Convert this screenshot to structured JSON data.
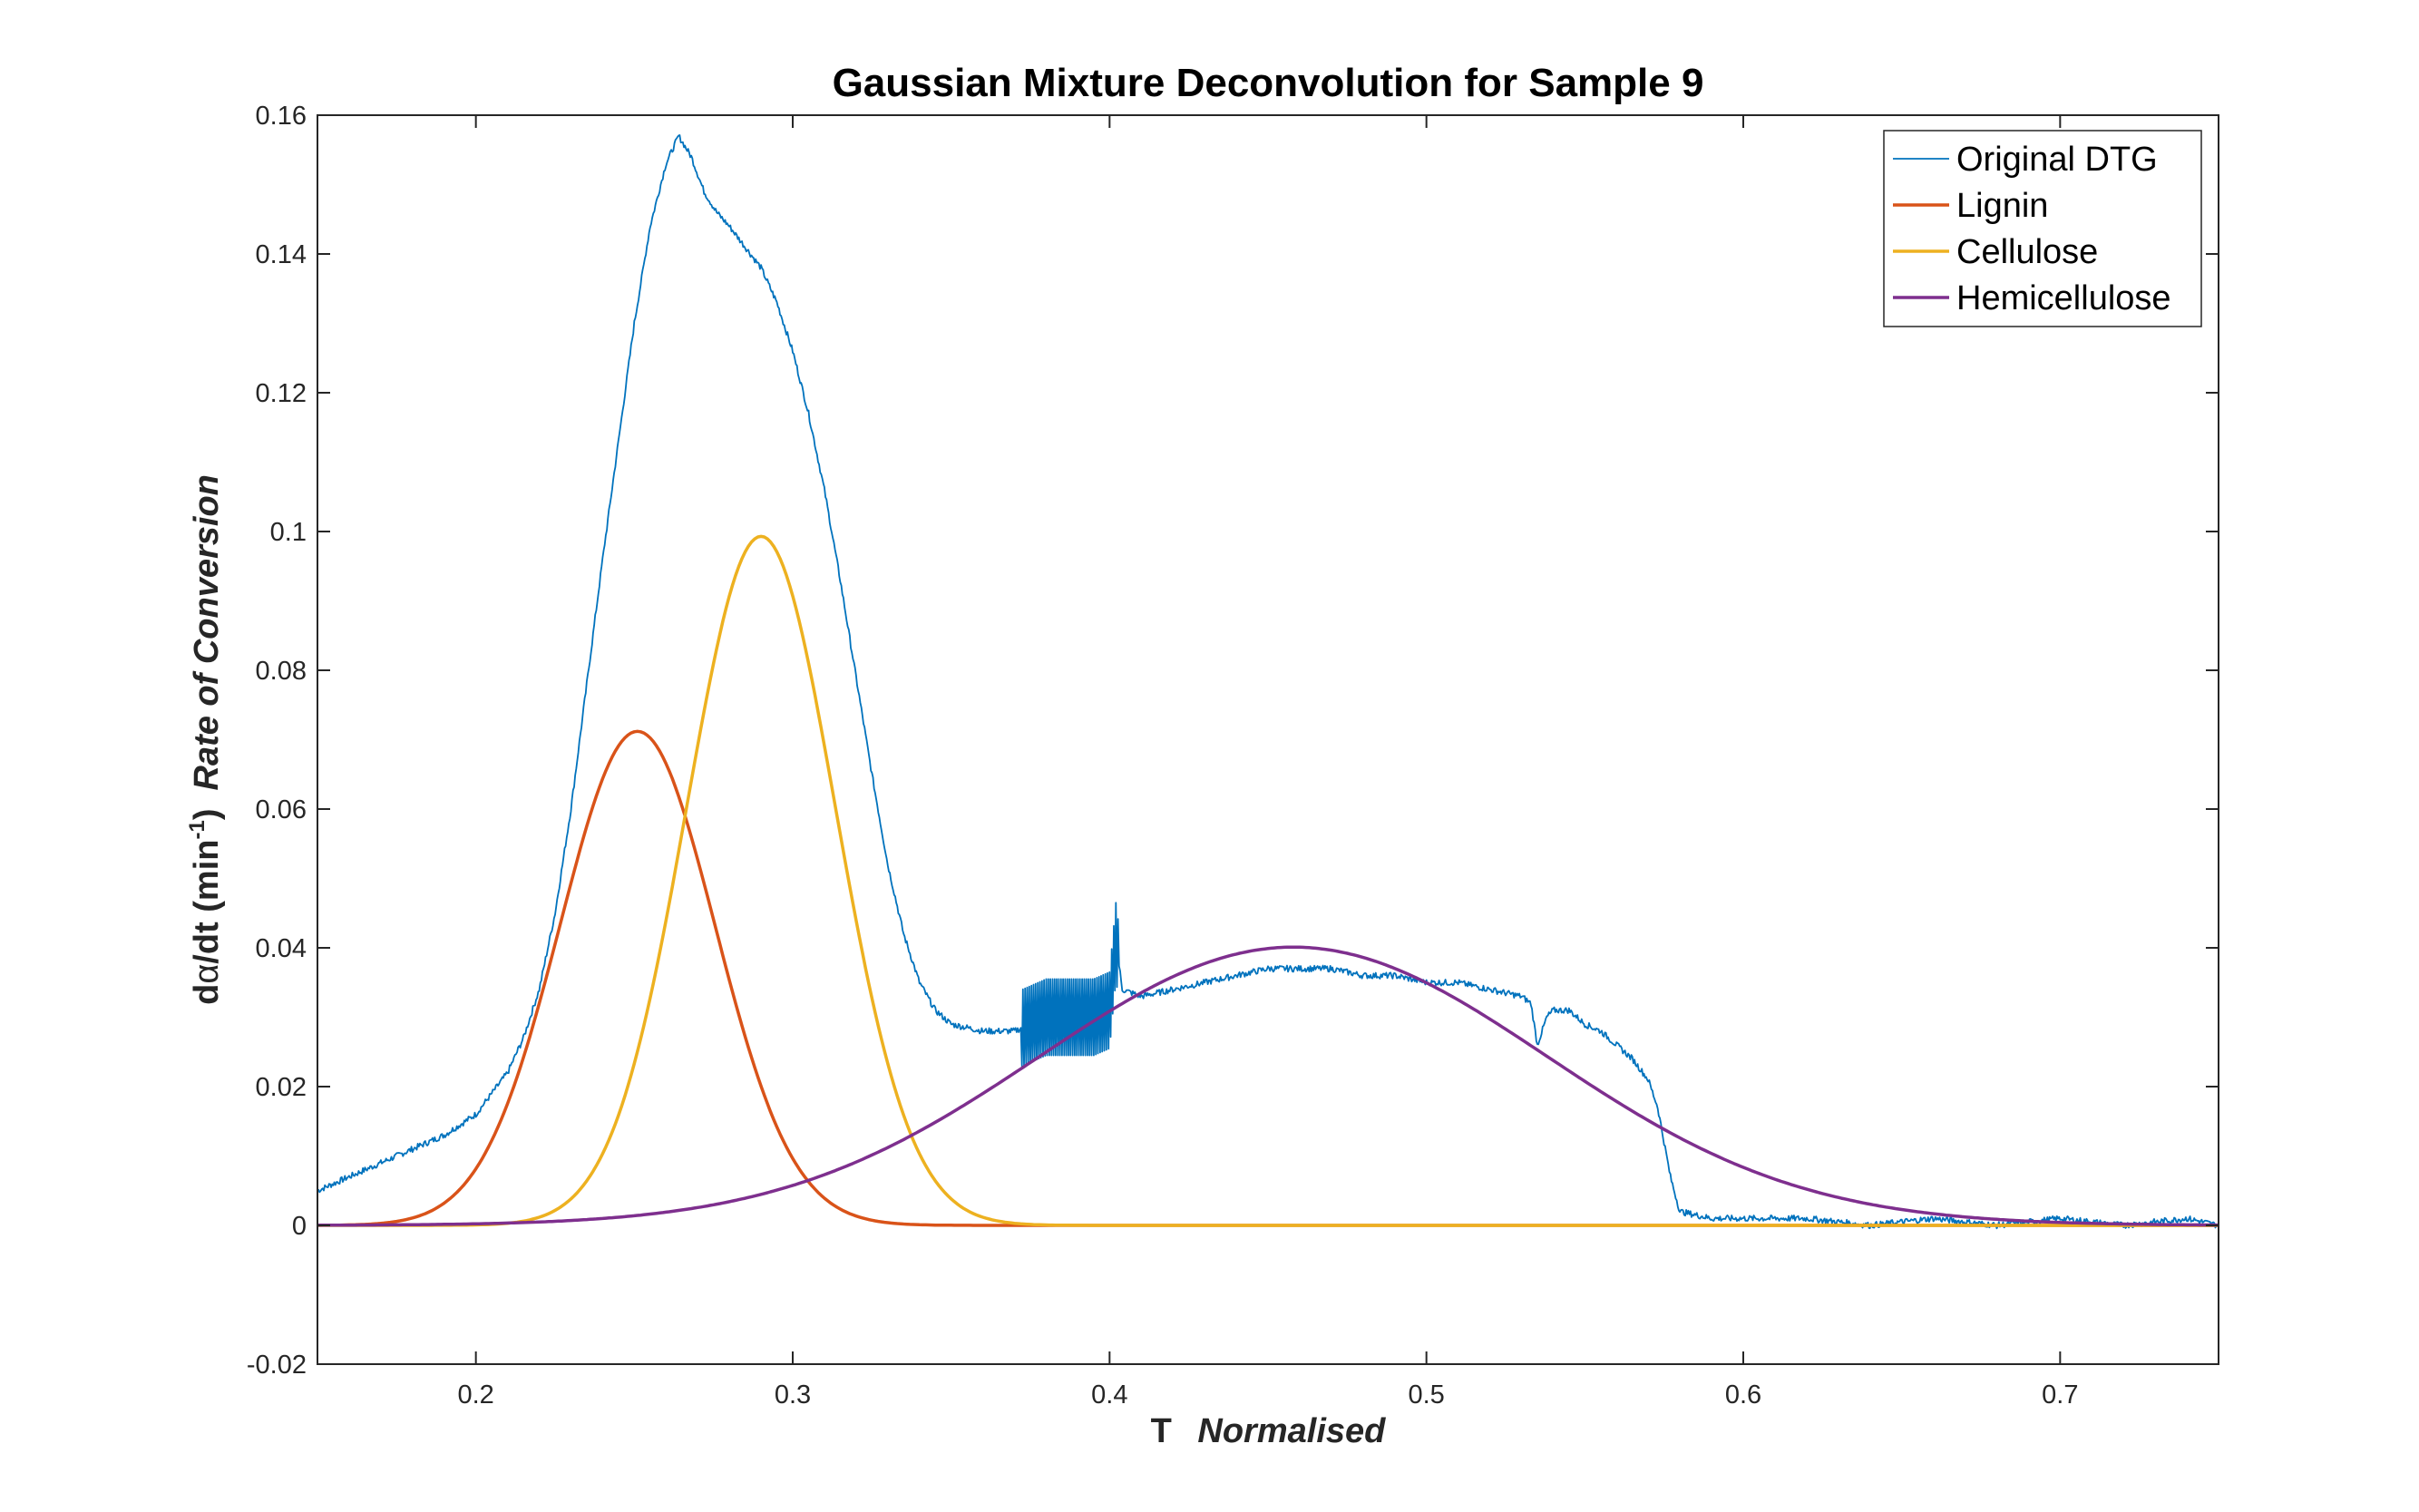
{
  "chart_data": {
    "type": "line",
    "title": "Gaussian Mixture Deconvolution for Sample 9",
    "xlabel": {
      "symbol": "T",
      "text": "Normalised"
    },
    "ylabel": {
      "prefix": "d",
      "alpha": "α",
      "mid": "/dt (min",
      "sup": "-1",
      "suffix": ")",
      "text": "Rate of Conversion"
    },
    "xlim": [
      0.15,
      0.75
    ],
    "ylim": [
      -0.02,
      0.16
    ],
    "xticks": [
      0.2,
      0.3,
      0.4,
      0.5,
      0.6,
      0.7
    ],
    "xtick_labels": [
      "0.2",
      "0.3",
      "0.4",
      "0.5",
      "0.6",
      "0.7"
    ],
    "yticks": [
      -0.02,
      0,
      0.02,
      0.04,
      0.06,
      0.08,
      0.1,
      0.12,
      0.14,
      0.16
    ],
    "ytick_labels": [
      "-0.02",
      "0",
      "0.02",
      "0.04",
      "0.06",
      "0.08",
      "0.1",
      "0.12",
      "0.14",
      "0.16"
    ],
    "grid": false,
    "legend_position": "top-right",
    "series": [
      {
        "name": "Original DTG",
        "color": "#0072BD",
        "x": [
          0.15,
          0.16,
          0.17,
          0.18,
          0.19,
          0.2,
          0.205,
          0.21,
          0.215,
          0.22,
          0.225,
          0.23,
          0.235,
          0.24,
          0.245,
          0.25,
          0.255,
          0.26,
          0.264,
          0.268,
          0.272,
          0.276,
          0.28,
          0.285,
          0.29,
          0.295,
          0.3,
          0.305,
          0.31,
          0.315,
          0.32,
          0.325,
          0.33,
          0.335,
          0.34,
          0.345,
          0.35,
          0.36,
          0.37,
          0.375,
          0.38,
          0.385,
          0.39,
          0.395,
          0.4,
          0.402,
          0.404,
          0.41,
          0.42,
          0.43,
          0.44,
          0.45,
          0.46,
          0.47,
          0.48,
          0.49,
          0.5,
          0.51,
          0.52,
          0.53,
          0.533,
          0.535,
          0.538,
          0.54,
          0.545,
          0.55,
          0.555,
          0.56,
          0.565,
          0.57,
          0.573,
          0.575,
          0.577,
          0.58,
          0.59,
          0.6,
          0.62,
          0.64,
          0.66,
          0.68,
          0.7,
          0.72,
          0.74,
          0.75
        ],
        "y": [
          0.005,
          0.007,
          0.009,
          0.011,
          0.013,
          0.016,
          0.019,
          0.022,
          0.027,
          0.034,
          0.045,
          0.06,
          0.078,
          0.096,
          0.113,
          0.13,
          0.144,
          0.153,
          0.157,
          0.154,
          0.149,
          0.146,
          0.144,
          0.141,
          0.138,
          0.133,
          0.126,
          0.117,
          0.106,
          0.093,
          0.079,
          0.065,
          0.052,
          0.042,
          0.035,
          0.031,
          0.029,
          0.028,
          0.028,
          0.029,
          0.03,
          0.03,
          0.03,
          0.03,
          0.031,
          0.041,
          0.034,
          0.033,
          0.034,
          0.035,
          0.036,
          0.037,
          0.037,
          0.037,
          0.036,
          0.036,
          0.035,
          0.035,
          0.034,
          0.033,
          0.032,
          0.026,
          0.03,
          0.031,
          0.031,
          0.029,
          0.028,
          0.026,
          0.024,
          0.021,
          0.017,
          0.012,
          0.007,
          0.002,
          0.001,
          0.001,
          0.001,
          0.0,
          0.001,
          0.0,
          0.001,
          0.0,
          0.001,
          0.0
        ]
      },
      {
        "name": "Lignin",
        "color": "#D95319",
        "model": "gaussian",
        "amplitude": 0.0712,
        "center": 0.251,
        "sigma": 0.0245
      },
      {
        "name": "Cellulose",
        "color": "#EDB120",
        "model": "gaussian",
        "amplitude": 0.0993,
        "center": 0.29,
        "sigma": 0.0235
      },
      {
        "name": "Hemicellulose",
        "color": "#7E2F8E",
        "model": "gaussian",
        "amplitude": 0.0401,
        "center": 0.458,
        "sigma": 0.0802
      }
    ]
  }
}
